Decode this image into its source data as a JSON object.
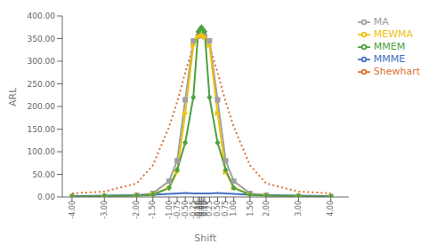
{
  "chart_data": {
    "type": "line",
    "xlabel": "Shift",
    "ylabel": "ARL",
    "x": [
      -4.0,
      -3.0,
      -2.0,
      -1.5,
      -1.0,
      -0.75,
      -0.5,
      -0.25,
      -0.1,
      -0.05,
      0.0,
      0.05,
      0.1,
      0.25,
      0.5,
      0.75,
      1.0,
      1.5,
      2.0,
      3.0,
      4.0
    ],
    "series": [
      {
        "name": "Shewhart",
        "color": "#E07030",
        "line_style": "dotted",
        "marker": "none",
        "values": [
          8,
          12,
          30,
          70,
          155,
          210,
          275,
          335,
          358,
          363,
          368,
          363,
          358,
          335,
          275,
          210,
          155,
          70,
          30,
          12,
          8
        ]
      },
      {
        "name": "MA",
        "color": "#A0A0A0",
        "line_style": "solid",
        "marker": "square",
        "values": [
          1,
          2,
          4,
          8,
          35,
          80,
          215,
          345,
          355,
          358,
          360,
          358,
          355,
          345,
          215,
          80,
          35,
          8,
          4,
          2,
          1
        ]
      },
      {
        "name": "MEWMA",
        "color": "#F0C010",
        "line_style": "solid",
        "marker": "triangle_right",
        "values": [
          1,
          2,
          3,
          6,
          20,
          55,
          185,
          335,
          353,
          357,
          360,
          357,
          353,
          335,
          185,
          55,
          20,
          6,
          3,
          2,
          1
        ]
      },
      {
        "name": "MMME",
        "color": "#4472C4",
        "line_style": "solid",
        "marker": "none",
        "values": [
          2,
          3,
          4,
          5,
          7,
          8,
          9,
          8,
          8,
          8,
          8,
          8,
          8,
          8,
          9,
          8,
          7,
          5,
          4,
          3,
          2
        ]
      },
      {
        "name": "MMEM",
        "color": "#4EA040",
        "line_style": "solid",
        "marker": "diamond",
        "values": [
          1,
          2,
          3,
          5,
          20,
          60,
          120,
          220,
          365,
          370,
          375,
          370,
          365,
          220,
          120,
          60,
          20,
          5,
          3,
          2,
          1
        ]
      }
    ],
    "xlim": [
      -4.3,
      4.55
    ],
    "xticks": [
      {
        "value": -4.0,
        "label": "-4.00"
      },
      {
        "value": -3.0,
        "label": "-3.00"
      },
      {
        "value": -2.0,
        "label": "-2.00"
      },
      {
        "value": -1.5,
        "label": "-1.50"
      },
      {
        "value": -1.0,
        "label": "-1.00"
      },
      {
        "value": -0.75,
        "label": "-0.75"
      },
      {
        "value": -0.5,
        "label": "-0.50"
      },
      {
        "value": -0.25,
        "label": "-0.25"
      },
      {
        "value": -0.1,
        "label": "-0.10"
      },
      {
        "value": -0.05,
        "label": "-0.05"
      },
      {
        "value": 0.0,
        "label": "0.00"
      },
      {
        "value": 0.05,
        "label": "0.05"
      },
      {
        "value": 0.1,
        "label": "0.10"
      },
      {
        "value": 0.25,
        "label": "0.25"
      },
      {
        "value": 0.5,
        "label": "0.50"
      },
      {
        "value": 0.75,
        "label": "0.75"
      },
      {
        "value": 1.0,
        "label": "1.00"
      },
      {
        "value": 1.5,
        "label": "1.50"
      },
      {
        "value": 2.0,
        "label": "2.00"
      },
      {
        "value": 3.0,
        "label": "3.00"
      },
      {
        "value": 4.0,
        "label": "4.00"
      }
    ],
    "ylim": [
      0,
      400
    ],
    "yticks": [
      {
        "value": 0,
        "label": "0.00"
      },
      {
        "value": 50,
        "label": "50.00"
      },
      {
        "value": 100,
        "label": "100.00"
      },
      {
        "value": 150,
        "label": "150.00"
      },
      {
        "value": 200,
        "label": "200.00"
      },
      {
        "value": 250,
        "label": "250.00"
      },
      {
        "value": 300,
        "label": "300.00"
      },
      {
        "value": 350,
        "label": "350.00"
      },
      {
        "value": 400,
        "label": "400.00"
      }
    ],
    "grid": false,
    "legend": "right"
  }
}
